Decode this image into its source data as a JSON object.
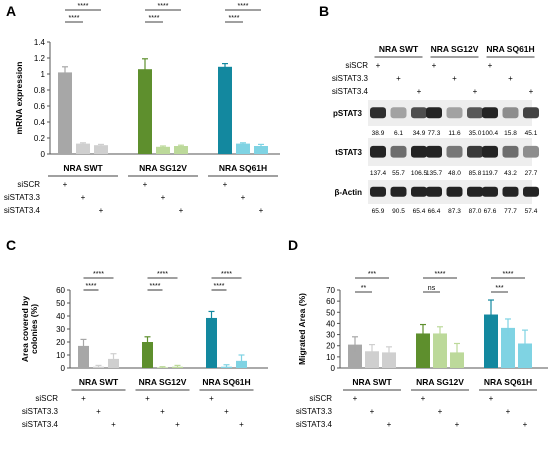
{
  "colors": {
    "gray": "#a7a7a7",
    "gray_light": "#cfcfcf",
    "green": "#5e8f2d",
    "green_light": "#bcd99a",
    "teal": "#13889f",
    "teal_light": "#7fd3e3",
    "blot_band": "#1e1e1e"
  },
  "panel_letters": [
    "A",
    "B",
    "C",
    "D"
  ],
  "treatment_rows": [
    "siSCR",
    "siSTAT3.3",
    "siSTAT3.4"
  ],
  "plus_sign": "+",
  "chart_data": [
    {
      "panel": "A",
      "type": "bar",
      "groups": [
        "NRA SWT",
        "NRA SG12V",
        "NRA SQ61H"
      ],
      "ylabel": "mRNA expression",
      "ylim": [
        0,
        1.4
      ],
      "yticks": [
        "0",
        "0.2",
        "0.4",
        "0.6",
        "0.8",
        "1",
        "1.2",
        "1.4"
      ],
      "values": [
        1.02,
        0.13,
        0.11,
        1.06,
        0.09,
        0.1,
        1.09,
        0.13,
        0.1
      ],
      "errors": [
        0.07,
        0.01,
        0.01,
        0.13,
        0.01,
        0.01,
        0.04,
        0.01,
        0.02
      ],
      "significance": [
        {
          "from": 0,
          "to": 1,
          "label": "****"
        },
        {
          "from": 0,
          "to": 2,
          "label": "****"
        },
        {
          "from": 3,
          "to": 4,
          "label": "****"
        },
        {
          "from": 3,
          "to": 5,
          "label": "****"
        },
        {
          "from": 6,
          "to": 7,
          "label": "****"
        },
        {
          "from": 6,
          "to": 8,
          "label": "****"
        }
      ]
    },
    {
      "panel": "C",
      "type": "bar",
      "groups": [
        "NRA SWT",
        "NRA SG12V",
        "NRA SQ61H"
      ],
      "ylabel": "Area covered by colonies (%)",
      "ylim": [
        0,
        60
      ],
      "yticks": [
        "0",
        "10",
        "20",
        "30",
        "40",
        "50",
        "60"
      ],
      "values": [
        17,
        1,
        7,
        20,
        0.5,
        1,
        38.5,
        1,
        5.5
      ],
      "errors": [
        5,
        1,
        4,
        4,
        0.5,
        1,
        5,
        1.5,
        4.5
      ],
      "significance": [
        {
          "from": 0,
          "to": 1,
          "label": "****"
        },
        {
          "from": 0,
          "to": 2,
          "label": "****"
        },
        {
          "from": 3,
          "to": 4,
          "label": "****"
        },
        {
          "from": 3,
          "to": 5,
          "label": "****"
        },
        {
          "from": 6,
          "to": 7,
          "label": "****"
        },
        {
          "from": 6,
          "to": 8,
          "label": "****"
        }
      ]
    },
    {
      "panel": "D",
      "type": "bar",
      "groups": [
        "NRA SWT",
        "NRA SG12V",
        "NRA SQ61H"
      ],
      "ylabel": "Migrated Area (%)",
      "ylim": [
        0,
        70
      ],
      "yticks": [
        "0",
        "10",
        "20",
        "30",
        "40",
        "50",
        "60",
        "70"
      ],
      "values": [
        21,
        15,
        14,
        31,
        31,
        14,
        48,
        36,
        22
      ],
      "errors": [
        7,
        6,
        5,
        8,
        6,
        8,
        13,
        8,
        12
      ],
      "significance": [
        {
          "from": 0,
          "to": 1,
          "label": "**"
        },
        {
          "from": 0,
          "to": 2,
          "label": "***"
        },
        {
          "from": 3,
          "to": 4,
          "label": "ns"
        },
        {
          "from": 3,
          "to": 5,
          "label": "****"
        },
        {
          "from": 6,
          "to": 7,
          "label": "***"
        },
        {
          "from": 6,
          "to": 8,
          "label": "****"
        }
      ]
    }
  ],
  "blot": {
    "groups": [
      "NRA SWT",
      "NRA SG12V",
      "NRA SQ61H"
    ],
    "rows": [
      {
        "label": "pSTAT3",
        "intensity": [
          0.9,
          0.35,
          0.75,
          0.95,
          0.35,
          0.7,
          0.95,
          0.45,
          0.8
        ],
        "values": [
          "38.9",
          "6.1",
          "34.9",
          "77.3",
          "11.6",
          "35.0",
          "100.4",
          "15.8",
          "45.1"
        ]
      },
      {
        "label": "tSTAT3",
        "intensity": [
          0.95,
          0.6,
          0.95,
          0.95,
          0.55,
          0.85,
          0.95,
          0.6,
          0.45
        ],
        "values": [
          "137.4",
          "55.7",
          "106.5",
          "135.7",
          "48.0",
          "85.8",
          "119.7",
          "43.2",
          "27.7"
        ]
      },
      {
        "label": "β-Actin",
        "intensity": [
          0.95,
          0.95,
          0.95,
          0.95,
          0.95,
          0.95,
          0.95,
          0.95,
          0.95
        ],
        "values": [
          "65.9",
          "90.5",
          "65.4",
          "66.4",
          "87.3",
          "87.0",
          "67.6",
          "77.7",
          "57.4"
        ]
      }
    ]
  }
}
